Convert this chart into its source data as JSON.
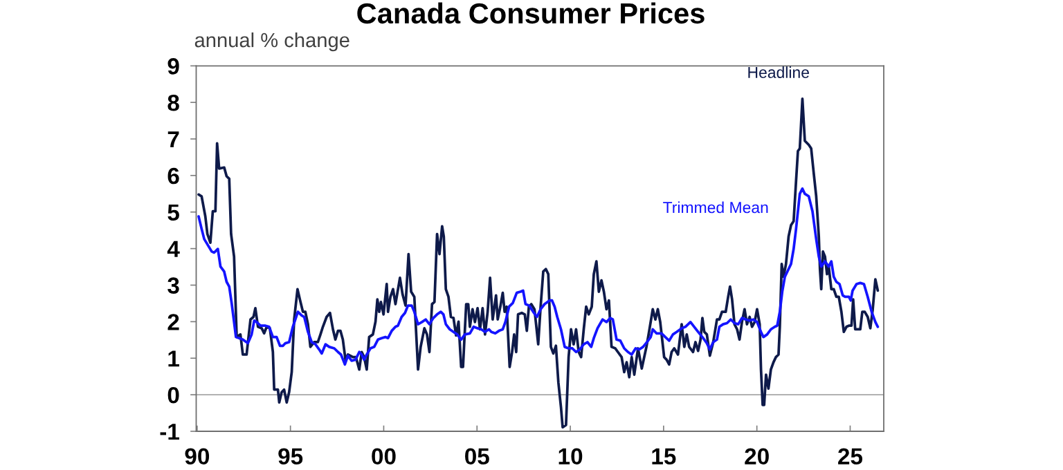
{
  "chart_data": {
    "type": "line",
    "title": "Canada Consumer Prices",
    "ylabel": "annual % change",
    "xlim": [
      1989.95,
      2026.8
    ],
    "xticks": [
      {
        "value": 1990,
        "label": "90"
      },
      {
        "value": 1995,
        "label": "95"
      },
      {
        "value": 2000,
        "label": "00"
      },
      {
        "value": 2005,
        "label": "05"
      },
      {
        "value": 2010,
        "label": "10"
      },
      {
        "value": 2015,
        "label": "15"
      },
      {
        "value": 2020,
        "label": "20"
      },
      {
        "value": 2025,
        "label": "25"
      }
    ],
    "ylim": [
      -1,
      9
    ],
    "yticks": [
      -1,
      0,
      1,
      2,
      3,
      4,
      5,
      6,
      7,
      8,
      9
    ],
    "grid": false,
    "legend": false,
    "line_style": "solid",
    "marker": "none",
    "ref_lines": [
      {
        "axis": "y",
        "value": 0,
        "color": "#a6a6a6"
      }
    ],
    "series": [
      {
        "name": "Headline",
        "color": "#0e1a4a",
        "x": [
          1990.08,
          1990.24,
          1990.44,
          1990.55,
          1990.71,
          1990.84,
          1990.98,
          1991.07,
          1991.18,
          1991.45,
          1991.58,
          1991.72,
          1991.82,
          1991.98,
          1992.12,
          1992.32,
          1992.45,
          1992.65,
          1992.86,
          1993.02,
          1993.12,
          1993.26,
          1993.46,
          1993.59,
          1993.73,
          1993.9,
          1994.06,
          1994.13,
          1994.33,
          1994.4,
          1994.53,
          1994.66,
          1994.8,
          1994.93,
          1995.07,
          1995.2,
          1995.38,
          1995.54,
          1995.67,
          1995.8,
          1995.94,
          1996.07,
          1996.27,
          1996.47,
          1996.61,
          1996.74,
          1996.94,
          1997.12,
          1997.28,
          1997.41,
          1997.55,
          1997.68,
          1997.81,
          1997.95,
          1998.08,
          1998.35,
          1998.51,
          1998.69,
          1998.82,
          1998.95,
          1999.09,
          1999.22,
          1999.42,
          1999.56,
          1999.66,
          1999.76,
          1999.85,
          1999.99,
          2000.16,
          2000.23,
          2000.36,
          2000.5,
          2000.63,
          2000.87,
          2001.01,
          2001.17,
          2001.33,
          2001.47,
          2001.64,
          2001.84,
          2001.98,
          2002.18,
          2002.32,
          2002.45,
          2002.59,
          2002.72,
          2002.86,
          2002.99,
          2003.13,
          2003.22,
          2003.33,
          2003.47,
          2003.6,
          2003.74,
          2003.88,
          2004.01,
          2004.15,
          2004.25,
          2004.42,
          2004.53,
          2004.62,
          2004.76,
          2004.89,
          2005.03,
          2005.16,
          2005.3,
          2005.43,
          2005.57,
          2005.7,
          2005.84,
          2006.02,
          2006.11,
          2006.25,
          2006.38,
          2006.48,
          2006.59,
          2006.75,
          2006.88,
          2006.99,
          2007.1,
          2007.2,
          2007.4,
          2007.56,
          2007.67,
          2007.78,
          2007.91,
          2008.08,
          2008.28,
          2008.41,
          2008.55,
          2008.69,
          2008.82,
          2008.96,
          2009.09,
          2009.23,
          2009.36,
          2009.5,
          2009.59,
          2009.77,
          2009.91,
          2010.04,
          2010.18,
          2010.31,
          2010.45,
          2010.58,
          2010.72,
          2010.85,
          2010.99,
          2011.15,
          2011.26,
          2011.4,
          2011.53,
          2011.67,
          2011.8,
          2011.94,
          2012.07,
          2012.21,
          2012.41,
          2012.55,
          2012.75,
          2012.89,
          2013.02,
          2013.16,
          2013.29,
          2013.43,
          2013.63,
          2013.83,
          2014.08,
          2014.22,
          2014.42,
          2014.56,
          2014.69,
          2014.82,
          2015.03,
          2015.16,
          2015.3,
          2015.43,
          2015.57,
          2015.77,
          2015.97,
          2016.11,
          2016.24,
          2016.37,
          2016.58,
          2016.71,
          2016.85,
          2016.98,
          2017.08,
          2017.18,
          2017.32,
          2017.48,
          2017.66,
          2017.86,
          2017.99,
          2018.13,
          2018.33,
          2018.46,
          2018.56,
          2018.67,
          2018.8,
          2018.94,
          2019.07,
          2019.2,
          2019.34,
          2019.47,
          2019.61,
          2019.74,
          2019.88,
          2020.01,
          2020.15,
          2020.22,
          2020.31,
          2020.39,
          2020.49,
          2020.62,
          2020.75,
          2020.89,
          2021.02,
          2021.16,
          2021.23,
          2021.33,
          2021.43,
          2021.56,
          2021.7,
          2021.83,
          2021.97,
          2022.1,
          2022.2,
          2022.3,
          2022.44,
          2022.57,
          2022.78,
          2022.91,
          2023.05,
          2023.18,
          2023.32,
          2023.38,
          2023.45,
          2023.54,
          2023.65,
          2023.76,
          2023.85,
          2023.99,
          2024.12,
          2024.26,
          2024.39,
          2024.53,
          2024.66,
          2024.8,
          2024.93,
          2025.07,
          2025.16,
          2025.27,
          2025.4,
          2025.54,
          2025.65,
          2025.78,
          2025.94,
          2026.08,
          2026.21,
          2026.35,
          2026.48
        ],
        "values": [
          5.48,
          5.43,
          4.88,
          4.4,
          4.16,
          5.02,
          5.02,
          6.88,
          6.19,
          6.22,
          5.98,
          5.91,
          4.4,
          3.78,
          1.58,
          1.65,
          1.1,
          1.1,
          2.06,
          2.13,
          2.37,
          1.86,
          1.82,
          1.68,
          1.86,
          1.82,
          1.17,
          0.14,
          0.14,
          -0.21,
          0.07,
          0.14,
          -0.21,
          0.07,
          0.62,
          2.06,
          2.89,
          2.54,
          2.27,
          2.27,
          1.93,
          1.31,
          1.44,
          1.44,
          1.65,
          1.86,
          2.13,
          2.24,
          1.79,
          1.51,
          1.75,
          1.75,
          1.51,
          0.96,
          1.1,
          1.03,
          1.03,
          0.69,
          1.17,
          1.03,
          0.69,
          1.58,
          1.65,
          2.0,
          2.61,
          2.27,
          2.54,
          2.2,
          3.03,
          2.27,
          2.68,
          2.89,
          2.48,
          3.2,
          2.75,
          2.44,
          3.85,
          2.82,
          2.68,
          0.69,
          1.31,
          1.82,
          1.65,
          1.17,
          2.48,
          2.54,
          4.4,
          3.85,
          4.61,
          4.33,
          2.89,
          2.68,
          2.13,
          2.1,
          1.62,
          2.0,
          0.76,
          0.76,
          2.48,
          2.48,
          1.86,
          2.34,
          1.99,
          2.37,
          1.79,
          2.37,
          1.65,
          2.27,
          3.2,
          2.06,
          2.72,
          2.06,
          2.41,
          2.79,
          2.27,
          2.41,
          0.76,
          1.17,
          1.65,
          1.17,
          2.2,
          2.24,
          2.2,
          1.75,
          2.41,
          2.48,
          2.34,
          1.38,
          2.41,
          3.37,
          3.44,
          3.3,
          1.31,
          1.13,
          1.34,
          0.34,
          -0.34,
          -0.89,
          -0.83,
          1.03,
          1.79,
          1.38,
          1.79,
          1.17,
          1.03,
          1.79,
          2.41,
          2.2,
          2.41,
          3.3,
          3.65,
          2.82,
          3.13,
          2.82,
          2.34,
          2.58,
          1.31,
          1.27,
          1.17,
          1.03,
          0.62,
          0.89,
          0.48,
          1.03,
          0.55,
          1.27,
          0.72,
          1.31,
          1.72,
          2.34,
          2.06,
          2.34,
          1.99,
          1.03,
          0.96,
          0.83,
          1.17,
          1.27,
          1.1,
          1.93,
          1.31,
          1.65,
          1.31,
          1.17,
          1.44,
          1.2,
          1.51,
          2.1,
          1.72,
          1.65,
          1.07,
          1.44,
          2.06,
          2.06,
          2.27,
          2.27,
          2.68,
          2.96,
          2.61,
          1.93,
          1.79,
          1.51,
          1.99,
          2.34,
          1.93,
          2.13,
          1.86,
          1.99,
          2.34,
          1.93,
          0.69,
          -0.28,
          -0.28,
          0.55,
          0.17,
          0.69,
          0.89,
          1.03,
          1.1,
          1.86,
          3.58,
          3.23,
          3.58,
          4.33,
          4.64,
          4.75,
          5.85,
          6.67,
          6.74,
          8.1,
          6.95,
          6.84,
          6.74,
          6.05,
          5.43,
          4.33,
          3.44,
          2.89,
          3.92,
          3.78,
          3.3,
          3.51,
          2.89,
          2.89,
          2.68,
          2.68,
          2.27,
          1.72,
          1.86,
          1.89,
          1.89,
          2.61,
          1.79,
          1.79,
          1.79,
          2.27,
          2.27,
          2.13,
          1.82,
          2.34,
          3.16,
          2.85
        ]
      },
      {
        "name": "Trimmed Mean",
        "color": "#1414ff",
        "x": [
          1990.08,
          1990.24,
          1990.38,
          1990.58,
          1990.78,
          1990.91,
          1991.11,
          1991.25,
          1991.45,
          1991.58,
          1991.72,
          1991.85,
          1991.98,
          1992.08,
          1992.25,
          1992.45,
          1992.72,
          1992.92,
          1993.06,
          1993.19,
          1993.39,
          1993.66,
          1993.86,
          1994.06,
          1994.26,
          1994.44,
          1994.6,
          1994.73,
          1994.93,
          1995.13,
          1995.4,
          1995.6,
          1995.74,
          1995.94,
          1996.14,
          1996.34,
          1996.54,
          1996.68,
          1996.88,
          1997.08,
          1997.35,
          1997.55,
          1997.71,
          1997.82,
          1997.92,
          1998.08,
          1998.28,
          1998.49,
          1998.69,
          1998.82,
          1998.95,
          1999.09,
          1999.29,
          1999.49,
          1999.69,
          1999.89,
          2000.09,
          2000.23,
          2000.43,
          2000.63,
          2000.76,
          2000.96,
          2001.14,
          2001.3,
          2001.5,
          2001.64,
          2001.84,
          2002.05,
          2002.25,
          2002.45,
          2002.66,
          2002.86,
          2003.06,
          2003.2,
          2003.33,
          2003.54,
          2003.74,
          2003.94,
          2004.15,
          2004.35,
          2004.62,
          2004.82,
          2005.03,
          2005.23,
          2005.43,
          2005.64,
          2005.77,
          2005.98,
          2006.18,
          2006.38,
          2006.52,
          2006.72,
          2006.92,
          2007.13,
          2007.33,
          2007.47,
          2007.6,
          2007.8,
          2008.01,
          2008.21,
          2008.41,
          2008.62,
          2008.89,
          2009.02,
          2009.16,
          2009.3,
          2009.5,
          2009.7,
          2009.91,
          2010.11,
          2010.31,
          2010.51,
          2010.72,
          2010.92,
          2011.12,
          2011.26,
          2011.46,
          2011.73,
          2011.94,
          2012.14,
          2012.28,
          2012.48,
          2012.68,
          2012.89,
          2013.09,
          2013.29,
          2013.5,
          2013.7,
          2013.9,
          2014.11,
          2014.31,
          2014.42,
          2014.62,
          2014.89,
          2015.09,
          2015.3,
          2015.5,
          2015.7,
          2015.97,
          2016.17,
          2016.44,
          2016.64,
          2016.85,
          2017.12,
          2017.32,
          2017.48,
          2017.66,
          2017.86,
          2017.99,
          2018.19,
          2018.4,
          2018.6,
          2018.8,
          2019.0,
          2019.2,
          2019.41,
          2019.61,
          2019.81,
          2020.01,
          2020.22,
          2020.35,
          2020.55,
          2020.75,
          2020.96,
          2021.09,
          2021.23,
          2021.36,
          2021.5,
          2021.7,
          2021.83,
          2021.97,
          2022.1,
          2022.3,
          2022.44,
          2022.57,
          2022.78,
          2022.98,
          2023.18,
          2023.32,
          2023.45,
          2023.65,
          2023.85,
          2023.99,
          2024.12,
          2024.26,
          2024.43,
          2024.6,
          2024.73,
          2024.93,
          2025.03,
          2025.13,
          2025.34,
          2025.54,
          2025.74,
          2025.94,
          2026.15,
          2026.35,
          2026.48
        ],
        "values": [
          4.88,
          4.54,
          4.26,
          4.09,
          3.92,
          3.89,
          3.99,
          3.51,
          3.37,
          3.09,
          2.96,
          2.51,
          1.99,
          1.58,
          1.55,
          1.51,
          1.41,
          1.65,
          2.03,
          1.99,
          1.89,
          1.89,
          1.86,
          1.58,
          1.58,
          1.34,
          1.34,
          1.41,
          1.44,
          1.86,
          2.27,
          2.17,
          2.13,
          1.72,
          1.44,
          1.38,
          1.24,
          1.13,
          1.38,
          1.31,
          1.27,
          1.17,
          1.1,
          0.96,
          0.83,
          1.07,
          0.93,
          0.96,
          1.17,
          1.1,
          0.96,
          1.1,
          1.27,
          1.31,
          1.51,
          1.55,
          1.58,
          1.55,
          1.75,
          1.86,
          1.89,
          2.13,
          2.24,
          2.44,
          2.44,
          2.27,
          1.93,
          1.99,
          2.06,
          1.93,
          2.1,
          2.2,
          2.27,
          2.2,
          1.93,
          1.79,
          1.72,
          1.65,
          1.51,
          1.65,
          1.68,
          1.86,
          1.82,
          1.79,
          1.72,
          1.79,
          1.72,
          1.68,
          1.75,
          1.79,
          1.99,
          2.41,
          2.51,
          2.79,
          2.82,
          2.85,
          2.48,
          2.44,
          2.27,
          2.13,
          2.34,
          2.48,
          2.58,
          2.58,
          2.41,
          2.13,
          1.79,
          1.31,
          1.27,
          1.27,
          1.17,
          1.24,
          1.38,
          1.44,
          1.31,
          1.55,
          1.82,
          2.06,
          1.99,
          2.1,
          2.06,
          1.51,
          1.48,
          1.27,
          1.17,
          1.1,
          1.27,
          1.24,
          1.31,
          1.44,
          1.58,
          1.79,
          1.68,
          1.68,
          1.58,
          1.48,
          1.65,
          1.72,
          1.82,
          1.86,
          1.99,
          1.86,
          1.72,
          1.55,
          1.41,
          1.24,
          1.44,
          1.51,
          1.86,
          1.93,
          1.96,
          2.06,
          1.96,
          1.93,
          2.1,
          2.06,
          2.03,
          2.06,
          1.99,
          1.72,
          1.58,
          1.65,
          1.79,
          1.86,
          1.89,
          2.27,
          2.82,
          3.23,
          3.44,
          3.58,
          3.99,
          4.54,
          5.5,
          5.64,
          5.5,
          5.43,
          5.02,
          4.26,
          3.78,
          3.51,
          3.65,
          3.51,
          3.65,
          3.23,
          3.09,
          3.03,
          2.72,
          2.68,
          2.68,
          2.58,
          2.85,
          3.03,
          3.06,
          3.03,
          2.68,
          2.27,
          1.99,
          1.86
        ]
      }
    ]
  }
}
